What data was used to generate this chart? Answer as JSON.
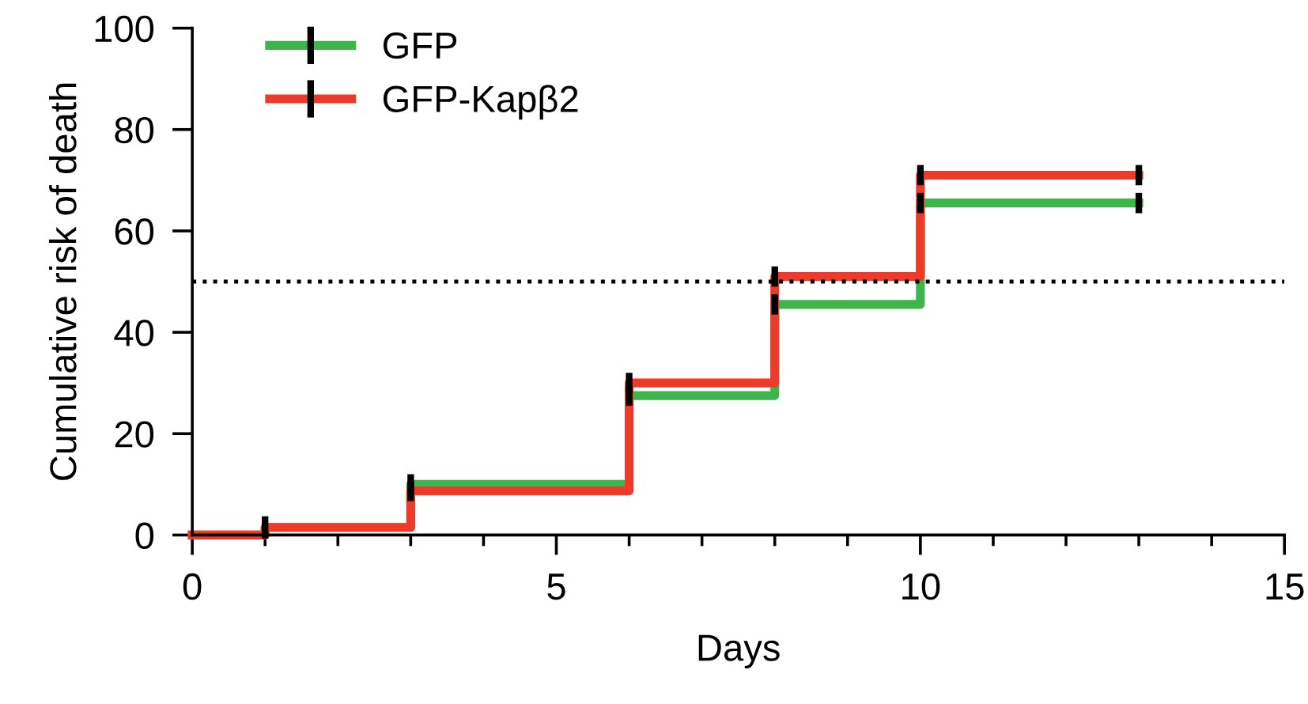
{
  "chart_data": {
    "type": "step",
    "xlabel": "Days",
    "ylabel": "Cumulative risk of death",
    "x": [
      0,
      1,
      3,
      6,
      8,
      10,
      13
    ],
    "series": [
      {
        "name": "GFP",
        "color": "#3db54a",
        "values": [
          0,
          1.5,
          10,
          27.5,
          45.5,
          65.5,
          65.5
        ],
        "errors": [
          null,
          null,
          2,
          2,
          2,
          2,
          2
        ]
      },
      {
        "name": "GFP-Kapβ2",
        "color": "#ee3a2b",
        "values": [
          0,
          1.5,
          8.7,
          30,
          51,
          71,
          71
        ],
        "errors": [
          null,
          2.2,
          2,
          2,
          2,
          2,
          2
        ]
      }
    ],
    "xlim": [
      0,
      15
    ],
    "xticks": [
      0,
      5,
      10,
      15
    ],
    "ylim": [
      0,
      100
    ],
    "yticks": [
      0,
      20,
      40,
      60,
      80,
      100
    ],
    "ref_lines": [
      {
        "axis": "y",
        "value": 50,
        "label": null,
        "color": "#000000",
        "line_style": "dotted"
      }
    ],
    "line_style": "solid",
    "grid": false,
    "legend": "top left"
  }
}
